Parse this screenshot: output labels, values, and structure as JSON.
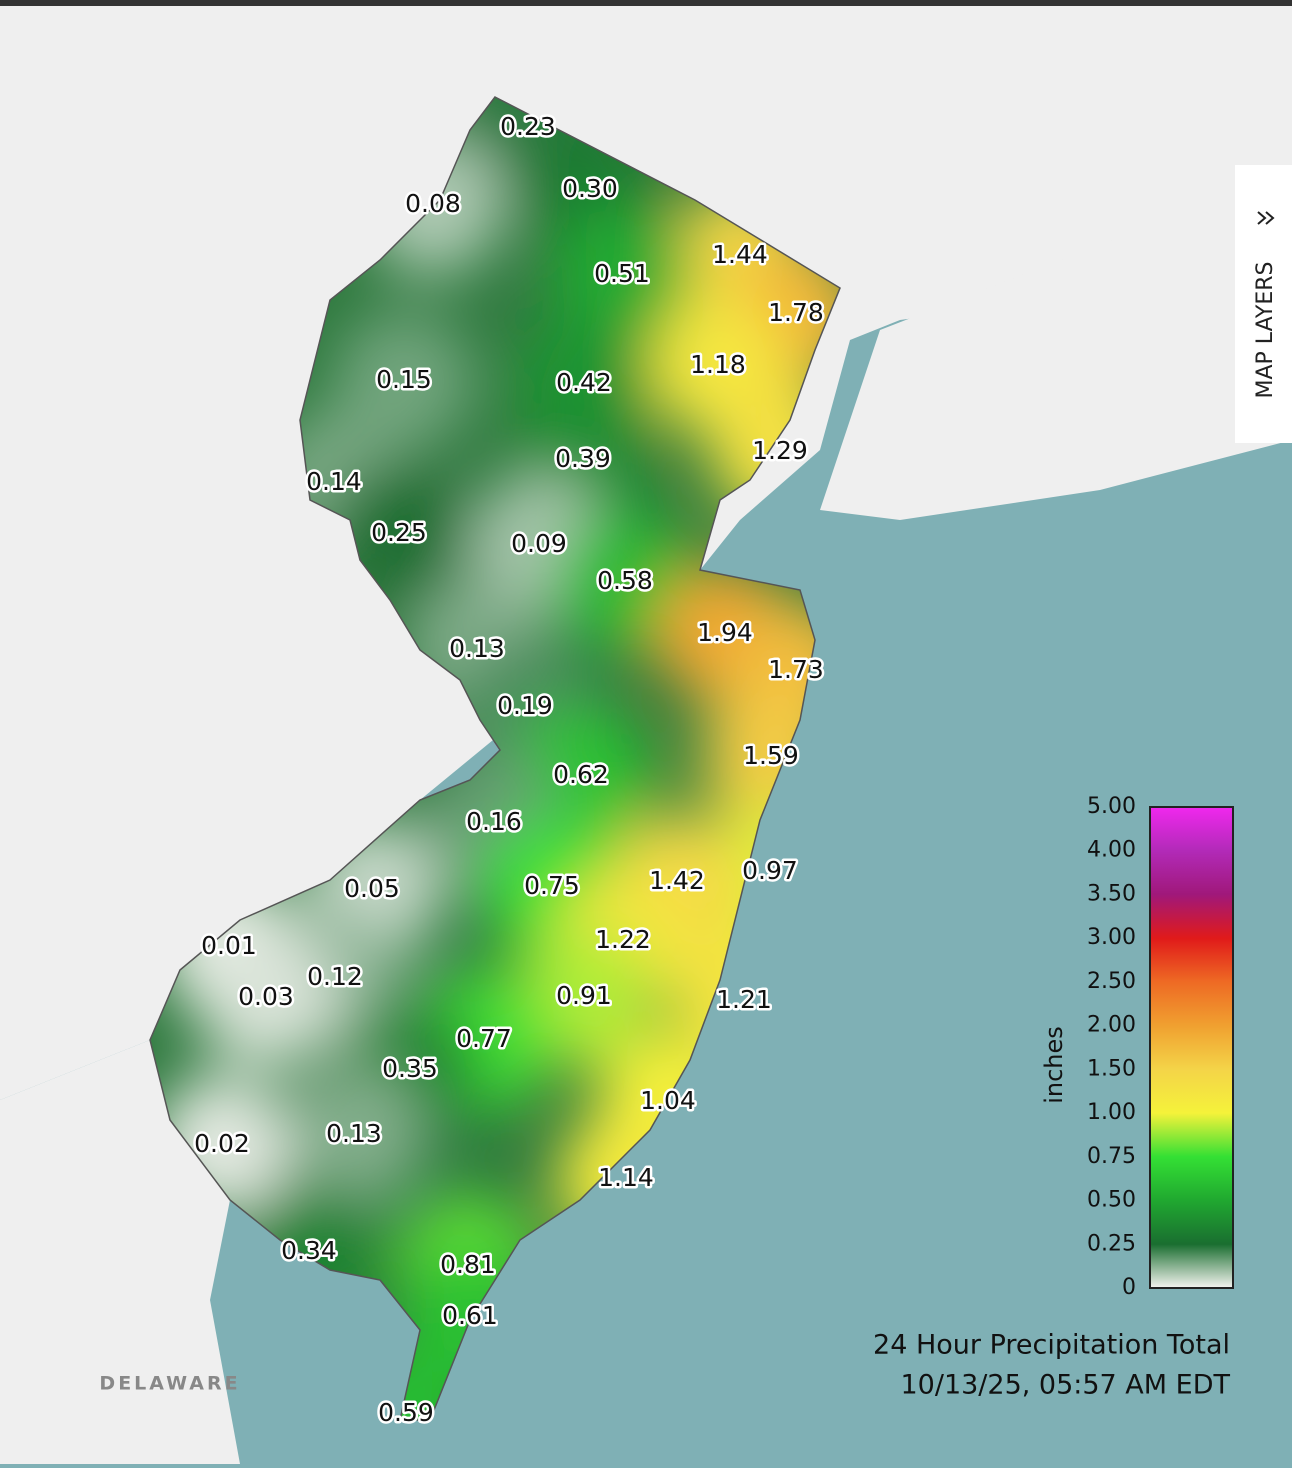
{
  "map": {
    "stations": {
      "values": [
        0.23,
        0.3,
        0.08,
        1.44,
        0.51,
        1.78,
        1.18,
        0.15,
        0.42,
        1.29,
        0.39,
        0.14,
        0.25,
        0.09,
        0.58,
        1.94,
        1.73,
        0.13,
        0.19,
        1.59,
        0.62,
        0.16,
        0.97,
        1.42,
        0.05,
        0.75,
        1.22,
        0.01,
        0.12,
        0.03,
        0.91,
        1.21,
        0.77,
        0.35,
        1.04,
        0.02,
        0.13,
        1.14,
        0.34,
        0.81,
        0.61,
        0.59
      ],
      "value_labels": [
        "0.23",
        "0.30",
        "0.08",
        "1.44",
        "0.51",
        "1.78",
        "1.18",
        "0.15",
        "0.42",
        "1.29",
        "0.39",
        "0.14",
        "0.25",
        "0.09",
        "0.58",
        "1.94",
        "1.73",
        "0.13",
        "0.19",
        "1.59",
        "0.62",
        "0.16",
        "0.97",
        "1.42",
        "0.05",
        "0.75",
        "1.22",
        "0.01",
        "0.12",
        "0.03",
        "0.91",
        "1.21",
        "0.77",
        "0.35",
        "1.04",
        "0.02",
        "0.13",
        "1.14",
        "0.34",
        "0.81",
        "0.61",
        "0.59"
      ]
    },
    "legend": {
      "title": "inches",
      "ticks": [
        {
          "value": 5,
          "label": "5.00"
        },
        {
          "value": 4,
          "label": "4.00"
        },
        {
          "value": 3.5,
          "label": "3.50"
        },
        {
          "value": 3,
          "label": "3.00"
        },
        {
          "value": 2.5,
          "label": "2.50"
        },
        {
          "value": 2,
          "label": "2.00"
        },
        {
          "value": 1.5,
          "label": "1.50"
        },
        {
          "value": 1,
          "label": "1.00"
        },
        {
          "value": 0.75,
          "label": "0.75"
        },
        {
          "value": 0.5,
          "label": "0.50"
        },
        {
          "value": 0.25,
          "label": "0.25"
        },
        0
      ],
      "colors": [
        "#f028ee",
        "#b22ab8",
        "#a0187a",
        "#e01a1a",
        "#ee6a24",
        "#f0a030",
        "#f4d448",
        "#f5f23a",
        "#34e034",
        "#20a830",
        "#1a6e30",
        "#f4f4f0"
      ]
    },
    "title": "24 Hour Precipitation Total",
    "timestamp": "10/13/25, 05:57 AM EDT",
    "region_label": "DELAWARE",
    "map_layers_button": "MAP LAYERS"
  }
}
